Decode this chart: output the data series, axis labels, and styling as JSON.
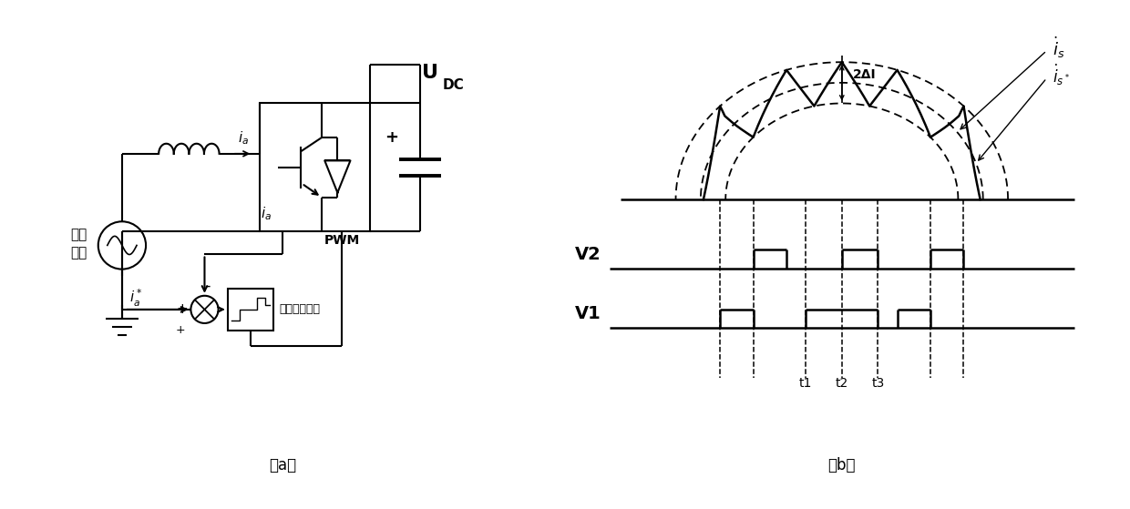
{
  "fig_width": 12.4,
  "fig_height": 5.59,
  "bg_color": "#ffffff",
  "label_a": "（a）",
  "label_b": "（b）",
  "label_moni": "模拟\n电源",
  "label_UDC_main": "U",
  "label_UDC_sub": "DC",
  "label_ia_top": "$i_a$",
  "label_ia_bot": "$i_a$",
  "label_ia_star": "$i_a^*$",
  "label_plus_top": "+",
  "label_minus": "-",
  "label_plus_bot": "+",
  "label_PWM": "PWM",
  "label_huanbi": "滞环比较模块",
  "label_2delta": "2ΔI",
  "label_is": "$i_s$",
  "label_isstar": "$i_{s*}$",
  "label_V2": "V2",
  "label_V1": "V1",
  "label_t1": "t1",
  "label_t2": "t2",
  "label_t3": "t3"
}
